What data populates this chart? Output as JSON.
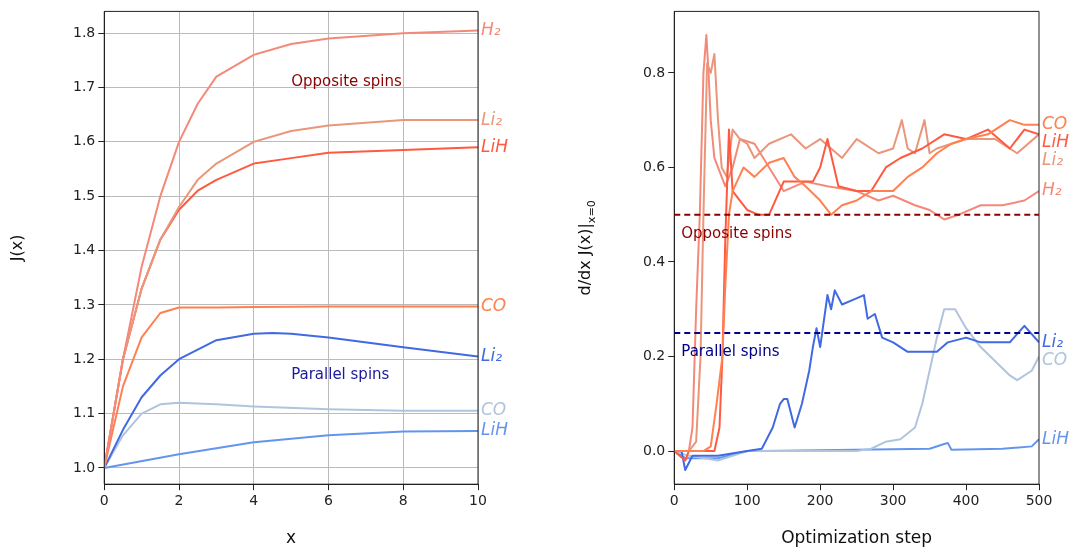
{
  "chart_data": [
    {
      "type": "line",
      "xlabel": "x",
      "ylabel": "J(x)",
      "xlim": [
        0,
        10
      ],
      "xticks": [
        0,
        2,
        4,
        6,
        8,
        10
      ],
      "ylim": [
        0.97,
        1.84
      ],
      "yticks": [
        {
          "value": 1,
          "label": "1.0"
        },
        1.1,
        1.2,
        1.3,
        1.4,
        1.5,
        1.6,
        1.7,
        1.8
      ],
      "grid": true,
      "legend": false,
      "annotations": [
        "Opposite spins",
        "Parallel spins"
      ],
      "series": [
        {
          "name": "H₂",
          "color": "#f4897a",
          "x": [
            0,
            0.5,
            1,
            1.5,
            2,
            2.5,
            3,
            4,
            5,
            6,
            8,
            10
          ],
          "values": [
            1.0,
            1.2,
            1.37,
            1.5,
            1.6,
            1.67,
            1.72,
            1.76,
            1.78,
            1.79,
            1.8,
            1.805
          ]
        },
        {
          "name": "Li₂",
          "color": "#e9967a",
          "x": [
            0,
            0.5,
            1,
            1.5,
            2,
            2.5,
            3,
            4,
            5,
            6,
            8,
            10
          ],
          "values": [
            1.0,
            1.2,
            1.33,
            1.42,
            1.48,
            1.53,
            1.56,
            1.6,
            1.62,
            1.63,
            1.64,
            1.64
          ]
        },
        {
          "name": "LiH",
          "color": "#ff5a40",
          "x": [
            0,
            0.5,
            1,
            1.5,
            2,
            2.5,
            3,
            4,
            5,
            6,
            8,
            10
          ],
          "values": [
            1.0,
            1.2,
            1.33,
            1.42,
            1.475,
            1.51,
            1.53,
            1.56,
            1.57,
            1.58,
            1.585,
            1.59
          ]
        },
        {
          "name": "CO",
          "color": "#ff8050",
          "x": [
            0,
            0.5,
            1,
            1.5,
            2,
            3,
            4,
            6,
            8,
            10
          ],
          "values": [
            1.0,
            1.15,
            1.24,
            1.285,
            1.295,
            1.295,
            1.296,
            1.297,
            1.297,
            1.297
          ]
        },
        {
          "name": "Li₂",
          "color": "#4169e1",
          "x": [
            0,
            0.5,
            1,
            1.5,
            2,
            3,
            4,
            4.5,
            5,
            6,
            8,
            10
          ],
          "values": [
            1.0,
            1.07,
            1.13,
            1.17,
            1.2,
            1.235,
            1.247,
            1.248,
            1.247,
            1.24,
            1.222,
            1.205
          ]
        },
        {
          "name": "CO",
          "color": "#b0c4de",
          "x": [
            0,
            0.5,
            1,
            1.5,
            2,
            3,
            4,
            6,
            8,
            10
          ],
          "values": [
            1.0,
            1.06,
            1.1,
            1.117,
            1.12,
            1.117,
            1.113,
            1.108,
            1.105,
            1.105
          ]
        },
        {
          "name": "LiH",
          "color": "#6495ed",
          "x": [
            0,
            2,
            4,
            6,
            8,
            10
          ],
          "values": [
            1.0,
            1.025,
            1.047,
            1.06,
            1.067,
            1.068
          ]
        }
      ]
    },
    {
      "type": "line",
      "xlabel": "Optimization step",
      "ylabel": "d/dx J(x)|$_{x=0}$",
      "xlim": [
        0,
        500
      ],
      "xticks": [
        0,
        100,
        200,
        300,
        400,
        500
      ],
      "ylim": [
        -0.07,
        0.93
      ],
      "yticks": [
        {
          "value": 0,
          "label": "0.0"
        },
        0.2,
        0.4,
        0.6,
        0.8
      ],
      "legend": false,
      "ref_lines": [
        {
          "axis": "y",
          "value": 0.5,
          "label": "Opposite spins",
          "color": "#8b0000",
          "line_style": "dashed"
        },
        {
          "axis": "y",
          "value": 0.25,
          "label": "Parallel spins",
          "color": "#00008b",
          "line_style": "dashed"
        }
      ],
      "series": [
        {
          "name": "CO",
          "color": "#ff8050",
          "x": [
            0,
            20,
            40,
            50,
            58,
            62,
            66,
            70,
            75,
            80,
            95,
            110,
            130,
            150,
            165,
            180,
            200,
            215,
            230,
            250,
            270,
            300,
            320,
            340,
            360,
            380,
            400,
            430,
            460,
            480,
            500
          ],
          "values": [
            0,
            0,
            0,
            0.01,
            0.1,
            0.15,
            0.2,
            0.35,
            0.5,
            0.55,
            0.6,
            0.58,
            0.61,
            0.62,
            0.58,
            0.56,
            0.53,
            0.5,
            0.52,
            0.53,
            0.55,
            0.55,
            0.58,
            0.6,
            0.63,
            0.65,
            0.66,
            0.67,
            0.7,
            0.69,
            0.69
          ]
        },
        {
          "name": "LiH",
          "color": "#ff5a40",
          "x": [
            0,
            15,
            20,
            30,
            40,
            55,
            62,
            66,
            70,
            75,
            80,
            90,
            100,
            115,
            130,
            150,
            170,
            190,
            200,
            210,
            225,
            250,
            270,
            290,
            310,
            340,
            370,
            400,
            430,
            460,
            480,
            500
          ],
          "values": [
            0,
            -0.02,
            0,
            0,
            0,
            0,
            0.05,
            0.2,
            0.45,
            0.68,
            0.55,
            0.53,
            0.51,
            0.5,
            0.5,
            0.57,
            0.57,
            0.57,
            0.6,
            0.66,
            0.56,
            0.55,
            0.55,
            0.6,
            0.62,
            0.64,
            0.67,
            0.66,
            0.68,
            0.64,
            0.68,
            0.67
          ]
        },
        {
          "name": "Li₂",
          "color": "#e9967a",
          "x": [
            0,
            20,
            30,
            36,
            40,
            45,
            50,
            55,
            60,
            65,
            72,
            80,
            90,
            100,
            110,
            130,
            160,
            180,
            200,
            230,
            250,
            280,
            300,
            312,
            320,
            330,
            343,
            350,
            360,
            400,
            440,
            470,
            500
          ],
          "values": [
            0,
            0,
            0.02,
            0.2,
            0.5,
            0.82,
            0.8,
            0.84,
            0.7,
            0.6,
            0.58,
            0.68,
            0.66,
            0.65,
            0.62,
            0.65,
            0.67,
            0.64,
            0.66,
            0.62,
            0.66,
            0.63,
            0.64,
            0.7,
            0.64,
            0.63,
            0.7,
            0.63,
            0.64,
            0.66,
            0.66,
            0.63,
            0.67
          ]
        },
        {
          "name": "H₂",
          "color": "#f4897a",
          "x": [
            0,
            20,
            25,
            30,
            35,
            40,
            44,
            47,
            50,
            55,
            60,
            65,
            70,
            80,
            90,
            110,
            130,
            150,
            180,
            210,
            250,
            280,
            300,
            330,
            350,
            370,
            390,
            420,
            450,
            480,
            500
          ],
          "values": [
            0,
            0,
            0.05,
            0.3,
            0.5,
            0.8,
            0.88,
            0.8,
            0.7,
            0.62,
            0.6,
            0.58,
            0.56,
            0.6,
            0.66,
            0.65,
            0.6,
            0.55,
            0.57,
            0.56,
            0.55,
            0.53,
            0.54,
            0.52,
            0.51,
            0.49,
            0.5,
            0.52,
            0.52,
            0.53,
            0.55
          ]
        },
        {
          "name": "Li₂",
          "color": "#4169e1",
          "x": [
            0,
            10,
            15,
            25,
            60,
            100,
            120,
            135,
            145,
            150,
            155,
            165,
            175,
            185,
            190,
            195,
            200,
            210,
            215,
            220,
            230,
            245,
            260,
            265,
            275,
            285,
            300,
            320,
            340,
            360,
            375,
            400,
            420,
            460,
            480,
            500
          ],
          "values": [
            0,
            0,
            -0.04,
            -0.01,
            -0.01,
            0,
            0.005,
            0.05,
            0.1,
            0.11,
            0.11,
            0.05,
            0.1,
            0.17,
            0.22,
            0.26,
            0.22,
            0.33,
            0.3,
            0.34,
            0.31,
            0.32,
            0.33,
            0.28,
            0.29,
            0.24,
            0.23,
            0.21,
            0.21,
            0.21,
            0.23,
            0.24,
            0.23,
            0.23,
            0.265,
            0.23
          ]
        },
        {
          "name": "CO",
          "color": "#b0c4de",
          "x": [
            0,
            20,
            60,
            100,
            250,
            270,
            290,
            310,
            330,
            340,
            350,
            360,
            370,
            385,
            400,
            420,
            440,
            460,
            470,
            490,
            500
          ],
          "values": [
            0,
            -0.01,
            -0.02,
            0,
            0,
            0.005,
            0.02,
            0.025,
            0.05,
            0.1,
            0.17,
            0.24,
            0.3,
            0.3,
            0.26,
            0.22,
            0.19,
            0.16,
            0.15,
            0.17,
            0.2
          ]
        },
        {
          "name": "LiH",
          "color": "#6495ed",
          "x": [
            0,
            15,
            60,
            100,
            350,
            370,
            375,
            380,
            450,
            490,
            500
          ],
          "values": [
            0,
            -0.015,
            -0.015,
            0,
            0.005,
            0.015,
            0.017,
            0.003,
            0.005,
            0.01,
            0.025
          ]
        }
      ]
    }
  ]
}
